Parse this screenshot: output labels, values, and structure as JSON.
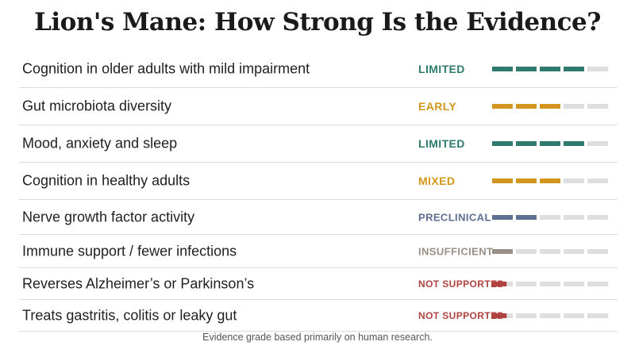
{
  "title": "Lion's Mane: How Strong Is the Evidence?",
  "footnote": "Evidence grade based primarily on human research.",
  "colors": {
    "LIMITED": "#2e7b6d",
    "EARLY": "#d2961c",
    "MIXED": "#d2961c",
    "PRECLINICAL": "#5f6f92",
    "INSUFFICIENT": "#9a8f86",
    "NOT SUPPORTED": "#b0423f",
    "empty": "#dedede"
  },
  "chart_data": {
    "type": "table",
    "max_score": 5,
    "rows": [
      {
        "claim": "Cognition in older adults with mild impairment",
        "grade": "LIMITED",
        "score": 4
      },
      {
        "claim": "Gut microbiota diversity",
        "grade": "EARLY",
        "score": 3
      },
      {
        "claim": "Mood, anxiety and sleep",
        "grade": "LIMITED",
        "score": 4
      },
      {
        "claim": "Cognition in healthy adults",
        "grade": "MIXED",
        "score": 3
      },
      {
        "claim": "Nerve growth factor activity",
        "grade": "PRECLINICAL",
        "score": 2
      },
      {
        "claim": "Immune support / fewer infections",
        "grade": "INSUFFICIENT",
        "score": 1
      },
      {
        "claim": "Reverses Alzheimer’s or Parkinson’s",
        "grade": "NOT SUPPORTED",
        "score": 0.7
      },
      {
        "claim": "Treats gastritis, colitis or leaky gut",
        "grade": "NOT SUPPORTED",
        "score": 0.7
      }
    ]
  }
}
